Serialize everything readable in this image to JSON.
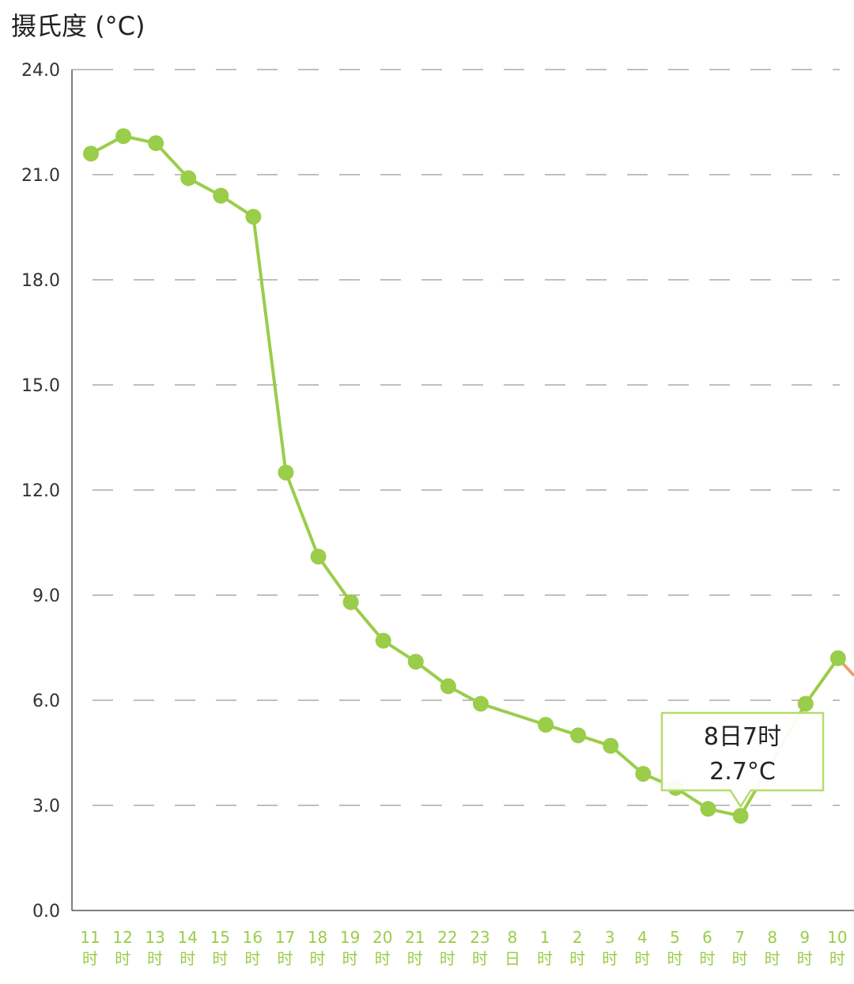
{
  "colors": {
    "line": "#9acd4a",
    "point": "#9acd4a",
    "forecast_line": "#e8a070",
    "tick_x": "#9acd4a",
    "grid": "#999999",
    "axis": "#555555",
    "tooltip_border": "#b5dc6a"
  },
  "chart_data": {
    "type": "line",
    "title": "",
    "ylabel": "摄氏度 (°C)",
    "xlabel": "",
    "ylim": [
      0,
      24
    ],
    "yticks": [
      "0.0",
      "3.0",
      "6.0",
      "9.0",
      "12.0",
      "15.0",
      "18.0",
      "21.0",
      "24.0"
    ],
    "grid": "horizontal-dashed",
    "categories": [
      [
        "11",
        "时"
      ],
      [
        "12",
        "时"
      ],
      [
        "13",
        "时"
      ],
      [
        "14",
        "时"
      ],
      [
        "15",
        "时"
      ],
      [
        "16",
        "时"
      ],
      [
        "17",
        "时"
      ],
      [
        "18",
        "时"
      ],
      [
        "19",
        "时"
      ],
      [
        "20",
        "时"
      ],
      [
        "21",
        "时"
      ],
      [
        "22",
        "时"
      ],
      [
        "23",
        "时"
      ],
      [
        "8",
        "日"
      ],
      [
        "1",
        "时"
      ],
      [
        "2",
        "时"
      ],
      [
        "3",
        "时"
      ],
      [
        "4",
        "时"
      ],
      [
        "5",
        "时"
      ],
      [
        "6",
        "时"
      ],
      [
        "7",
        "时"
      ],
      [
        "8",
        "时"
      ],
      [
        "9",
        "时"
      ],
      [
        "10",
        "时"
      ]
    ],
    "points": [
      {
        "i": 0,
        "y": 21.6
      },
      {
        "i": 1,
        "y": 22.1
      },
      {
        "i": 2,
        "y": 21.9
      },
      {
        "i": 3,
        "y": 20.9
      },
      {
        "i": 4,
        "y": 20.4
      },
      {
        "i": 5,
        "y": 19.8
      },
      {
        "i": 6,
        "y": 12.5
      },
      {
        "i": 7,
        "y": 10.1
      },
      {
        "i": 8,
        "y": 8.8
      },
      {
        "i": 9,
        "y": 7.7
      },
      {
        "i": 10,
        "y": 7.1
      },
      {
        "i": 11,
        "y": 6.4
      },
      {
        "i": 12,
        "y": 5.9
      },
      {
        "i": 14,
        "y": 5.3
      },
      {
        "i": 15,
        "y": 5.0
      },
      {
        "i": 16,
        "y": 4.7
      },
      {
        "i": 17,
        "y": 3.9
      },
      {
        "i": 18,
        "y": 3.5
      },
      {
        "i": 19,
        "y": 2.9
      },
      {
        "i": 20,
        "y": 2.7
      },
      {
        "i": 22,
        "y": 5.9
      },
      {
        "i": 23,
        "y": 7.2
      }
    ],
    "tooltip": {
      "index": 20,
      "line1": "8日7时",
      "line2": "2.7°C"
    }
  }
}
